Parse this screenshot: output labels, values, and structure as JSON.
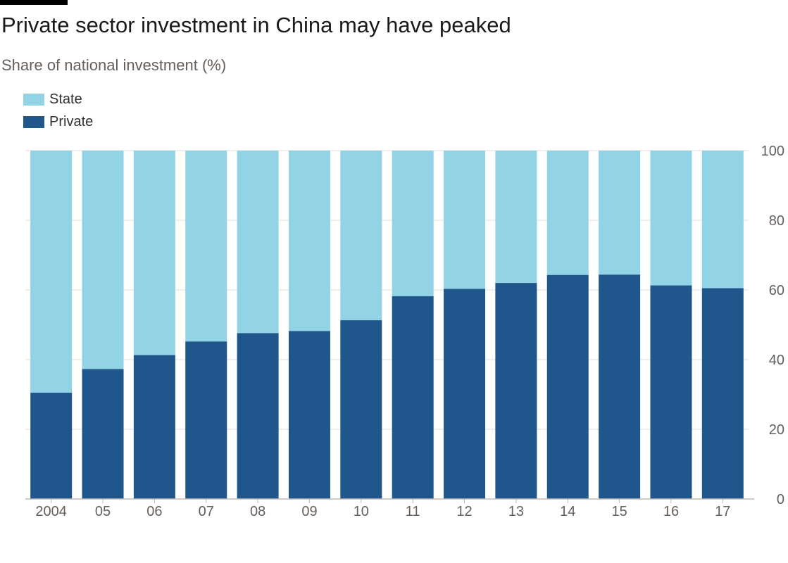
{
  "header": {
    "title": "Private sector investment in China may have peaked",
    "subtitle": "Share of national investment (%)"
  },
  "legend": {
    "state_label": "State",
    "private_label": "Private"
  },
  "colors": {
    "state": "#93d3e6",
    "private": "#1f568c",
    "grid": "#e2dedb",
    "axis": "#bfbab6",
    "rule": "#000000"
  },
  "chart_data": {
    "type": "bar",
    "stacked": true,
    "categories": [
      "2004",
      "05",
      "06",
      "07",
      "08",
      "09",
      "10",
      "11",
      "12",
      "13",
      "14",
      "15",
      "16",
      "17"
    ],
    "series": [
      {
        "name": "Private",
        "values": [
          30.5,
          37.3,
          41.3,
          45.2,
          47.6,
          48.2,
          51.3,
          58.2,
          60.3,
          62.0,
          64.3,
          64.4,
          61.3,
          60.5
        ]
      },
      {
        "name": "State",
        "values": [
          69.5,
          62.7,
          58.7,
          54.8,
          52.4,
          51.8,
          48.7,
          41.8,
          39.7,
          38.0,
          35.7,
          35.6,
          38.7,
          39.5
        ]
      }
    ],
    "title": "Private sector investment in China may have peaked",
    "subtitle": "Share of national investment (%)",
    "xlabel": "",
    "ylabel": "Share of national investment (%)",
    "ylim": [
      0,
      100
    ],
    "yticks": [
      "0",
      "20",
      "40",
      "60",
      "80",
      "100"
    ],
    "grid": true,
    "y_axis_position": "right",
    "legend_position": "top-left"
  }
}
